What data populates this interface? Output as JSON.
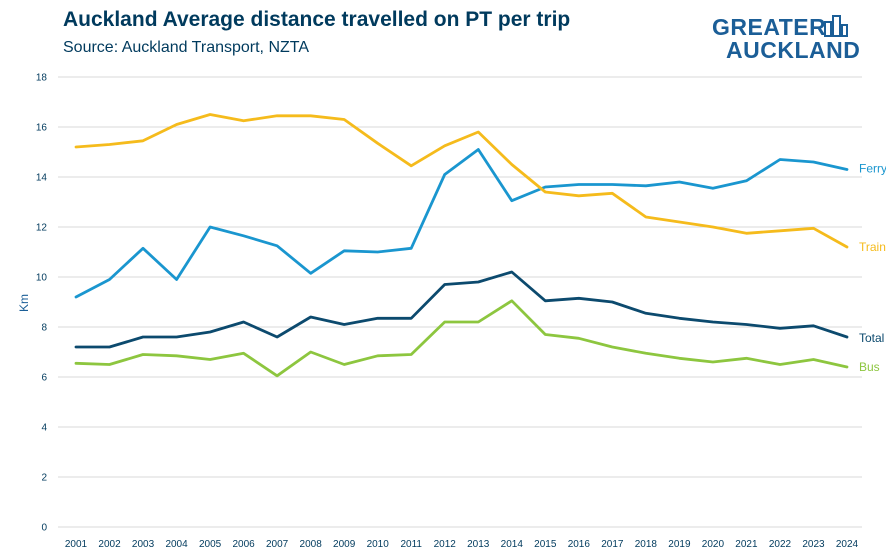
{
  "header": {
    "title": "Auckland Average distance travelled on PT per trip",
    "subtitle": "Source: Auckland Transport, NZTA"
  },
  "logo": {
    "line1": "GREATER",
    "line2": "AUCKLAND",
    "color": "#1b5e97"
  },
  "chart_data": {
    "type": "line",
    "title": "Auckland Average distance travelled on PT per trip",
    "subtitle": "Source: Auckland Transport, NZTA",
    "xlabel": "",
    "ylabel": "Km",
    "ylim": [
      0,
      18
    ],
    "yticks": [
      0,
      2,
      4,
      6,
      8,
      10,
      12,
      14,
      16,
      18
    ],
    "grid": "horizontal",
    "legend": "inline labels at right end of lines",
    "x": [
      "2001",
      "2002",
      "2003",
      "2004",
      "2005",
      "2006",
      "2007",
      "2008",
      "2009",
      "2010",
      "2011",
      "2012",
      "2013",
      "2014",
      "2015",
      "2016",
      "2017",
      "2018",
      "2019",
      "2020",
      "2021",
      "2022",
      "2023",
      "2024"
    ],
    "series": [
      {
        "name": "Ferry",
        "color": "#1a96cf",
        "values": [
          9.2,
          9.9,
          11.15,
          9.9,
          12.0,
          11.65,
          11.25,
          10.15,
          11.05,
          11.0,
          11.15,
          14.1,
          15.1,
          13.05,
          13.6,
          13.7,
          13.7,
          13.65,
          13.8,
          13.55,
          13.85,
          14.7,
          14.6,
          14.3
        ]
      },
      {
        "name": "Train",
        "color": "#f5bb1c",
        "values": [
          15.2,
          15.3,
          15.45,
          16.1,
          16.5,
          16.25,
          16.45,
          16.45,
          16.3,
          15.35,
          14.45,
          15.25,
          15.8,
          14.5,
          13.4,
          13.25,
          13.35,
          12.4,
          12.2,
          12.0,
          11.75,
          11.85,
          11.95,
          11.2
        ]
      },
      {
        "name": "Total",
        "color": "#0c4a6e",
        "values": [
          7.2,
          7.2,
          7.6,
          7.6,
          7.8,
          8.2,
          7.6,
          8.4,
          8.1,
          8.35,
          8.35,
          9.7,
          9.8,
          10.2,
          9.05,
          9.15,
          9.0,
          8.55,
          8.35,
          8.2,
          8.1,
          7.95,
          8.05,
          7.6
        ]
      },
      {
        "name": "Bus",
        "color": "#8dc63f",
        "values": [
          6.55,
          6.5,
          6.9,
          6.85,
          6.7,
          6.95,
          6.05,
          7.0,
          6.5,
          6.85,
          6.9,
          8.2,
          8.2,
          9.05,
          7.7,
          7.55,
          7.2,
          6.95,
          6.75,
          6.6,
          6.75,
          6.5,
          6.7,
          6.4
        ]
      }
    ]
  }
}
